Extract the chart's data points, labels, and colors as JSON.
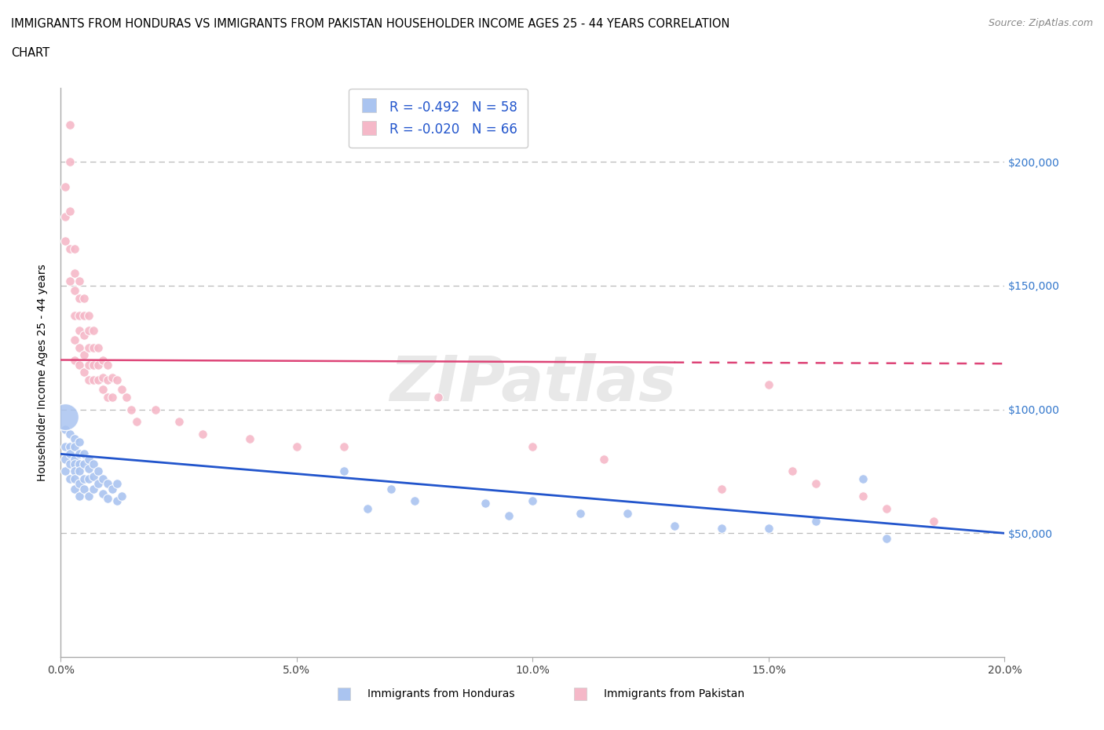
{
  "title_line1": "IMMIGRANTS FROM HONDURAS VS IMMIGRANTS FROM PAKISTAN HOUSEHOLDER INCOME AGES 25 - 44 YEARS CORRELATION",
  "title_line2": "CHART",
  "source_text": "Source: ZipAtlas.com",
  "ylabel": "Householder Income Ages 25 - 44 years",
  "xlim": [
    0.0,
    0.2
  ],
  "ylim": [
    0,
    230000
  ],
  "yticks": [
    0,
    50000,
    100000,
    150000,
    200000
  ],
  "ytick_labels": [
    "",
    "$50,000",
    "$100,000",
    "$150,000",
    "$200,000"
  ],
  "xticks": [
    0.0,
    0.05,
    0.1,
    0.15,
    0.2
  ],
  "xtick_labels": [
    "0.0%",
    "5.0%",
    "10.0%",
    "15.0%",
    "20.0%"
  ],
  "honduras_color": "#aac4f0",
  "pakistan_color": "#f5b8c8",
  "honduras_line_color": "#2255cc",
  "pakistan_line_color": "#dd4477",
  "r_honduras": -0.492,
  "n_honduras": 58,
  "r_pakistan": -0.02,
  "n_pakistan": 66,
  "watermark": "ZIPatlas",
  "legend_labels": [
    "Immigrants from Honduras",
    "Immigrants from Pakistan"
  ],
  "background_color": "#ffffff",
  "grid_color": "#bbbbbb",
  "honduras_x": [
    0.001,
    0.001,
    0.001,
    0.001,
    0.002,
    0.002,
    0.002,
    0.002,
    0.002,
    0.003,
    0.003,
    0.003,
    0.003,
    0.003,
    0.003,
    0.003,
    0.004,
    0.004,
    0.004,
    0.004,
    0.004,
    0.004,
    0.005,
    0.005,
    0.005,
    0.005,
    0.006,
    0.006,
    0.006,
    0.006,
    0.007,
    0.007,
    0.007,
    0.008,
    0.008,
    0.009,
    0.009,
    0.01,
    0.01,
    0.011,
    0.012,
    0.012,
    0.013,
    0.06,
    0.065,
    0.07,
    0.075,
    0.09,
    0.095,
    0.1,
    0.11,
    0.12,
    0.13,
    0.14,
    0.15,
    0.16,
    0.17,
    0.175
  ],
  "honduras_y": [
    92000,
    85000,
    80000,
    75000,
    90000,
    85000,
    82000,
    78000,
    72000,
    88000,
    85000,
    80000,
    78000,
    75000,
    72000,
    68000,
    87000,
    82000,
    78000,
    75000,
    70000,
    65000,
    82000,
    78000,
    72000,
    68000,
    80000,
    76000,
    72000,
    65000,
    78000,
    73000,
    68000,
    75000,
    70000,
    72000,
    66000,
    70000,
    64000,
    68000,
    70000,
    63000,
    65000,
    75000,
    60000,
    68000,
    63000,
    62000,
    57000,
    63000,
    58000,
    58000,
    53000,
    52000,
    52000,
    55000,
    72000,
    48000
  ],
  "honduras_sizes": [
    80,
    80,
    80,
    80,
    80,
    80,
    80,
    80,
    80,
    80,
    80,
    80,
    80,
    80,
    80,
    80,
    80,
    80,
    80,
    80,
    80,
    80,
    80,
    80,
    80,
    80,
    80,
    80,
    80,
    80,
    80,
    80,
    80,
    80,
    80,
    80,
    80,
    80,
    80,
    80,
    80,
    80,
    80,
    80,
    80,
    80,
    80,
    80,
    80,
    80,
    80,
    80,
    80,
    80,
    80,
    80,
    80,
    80
  ],
  "honduras_big_x": [
    0.001
  ],
  "honduras_big_y": [
    97000
  ],
  "pakistan_x": [
    0.001,
    0.001,
    0.001,
    0.002,
    0.002,
    0.002,
    0.002,
    0.002,
    0.003,
    0.003,
    0.003,
    0.003,
    0.003,
    0.003,
    0.004,
    0.004,
    0.004,
    0.004,
    0.004,
    0.004,
    0.005,
    0.005,
    0.005,
    0.005,
    0.005,
    0.006,
    0.006,
    0.006,
    0.006,
    0.006,
    0.007,
    0.007,
    0.007,
    0.007,
    0.008,
    0.008,
    0.008,
    0.009,
    0.009,
    0.009,
    0.01,
    0.01,
    0.01,
    0.011,
    0.011,
    0.012,
    0.013,
    0.014,
    0.015,
    0.016,
    0.02,
    0.025,
    0.03,
    0.04,
    0.05,
    0.06,
    0.08,
    0.1,
    0.115,
    0.14,
    0.15,
    0.155,
    0.16,
    0.17,
    0.175,
    0.185
  ],
  "pakistan_y": [
    190000,
    178000,
    168000,
    215000,
    200000,
    180000,
    165000,
    152000,
    165000,
    155000,
    148000,
    138000,
    128000,
    120000,
    152000,
    145000,
    138000,
    132000,
    125000,
    118000,
    145000,
    138000,
    130000,
    122000,
    115000,
    138000,
    132000,
    125000,
    118000,
    112000,
    132000,
    125000,
    118000,
    112000,
    125000,
    118000,
    112000,
    120000,
    113000,
    108000,
    118000,
    112000,
    105000,
    113000,
    105000,
    112000,
    108000,
    105000,
    100000,
    95000,
    100000,
    95000,
    90000,
    88000,
    85000,
    85000,
    105000,
    85000,
    80000,
    68000,
    110000,
    75000,
    70000,
    65000,
    60000,
    55000
  ]
}
